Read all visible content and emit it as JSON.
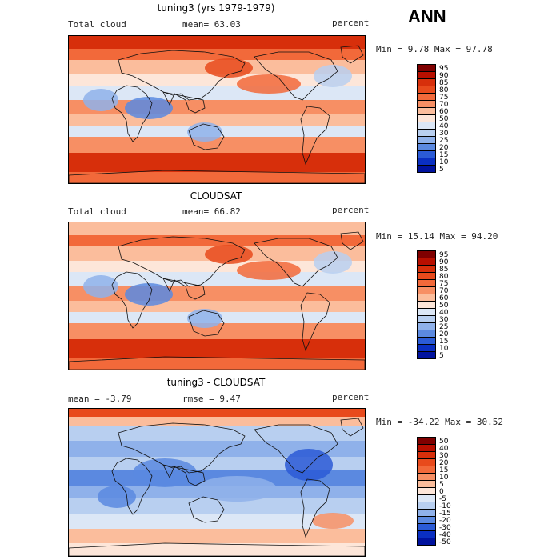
{
  "season": "ANN",
  "panels": [
    {
      "title": "tuning3 (yrs 1979-1979)",
      "left_label": "Total cloud",
      "mid_label": "mean=  63.03",
      "right_label": "percent",
      "minmax": "Min =   9.78 Max =  97.78",
      "palette": "abs",
      "colorbar": [
        "95",
        "90",
        "85",
        "80",
        "75",
        "70",
        "60",
        "50",
        "40",
        "30",
        "25",
        "20",
        "15",
        "10",
        "5"
      ]
    },
    {
      "title": "CLOUDSAT",
      "left_label": "Total cloud",
      "mid_label": "mean=  66.82",
      "right_label": "percent",
      "minmax": "Min =  15.14 Max =  94.20",
      "palette": "abs",
      "colorbar": [
        "95",
        "90",
        "85",
        "80",
        "75",
        "70",
        "60",
        "50",
        "40",
        "30",
        "25",
        "20",
        "15",
        "10",
        "5"
      ]
    },
    {
      "title": "tuning3 - CLOUDSAT",
      "left_label": "mean =  -3.79",
      "mid_label": "rmse =   9.47",
      "right_label": "percent",
      "minmax": "Min = -34.22 Max =  30.52",
      "palette": "diff",
      "colorbar": [
        "50",
        "40",
        "30",
        "20",
        "15",
        "10",
        "5",
        "0",
        "-5",
        "-10",
        "-15",
        "-20",
        "-30",
        "-40",
        "-50"
      ]
    }
  ],
  "colors": {
    "abs": [
      "#7f0000",
      "#b80f00",
      "#d72f0b",
      "#e84a1c",
      "#f2693a",
      "#f78f64",
      "#fbbd9c",
      "#fde6d9",
      "#dce7f6",
      "#b8cff0",
      "#8fb1ea",
      "#5b89e0",
      "#2b5bd6",
      "#0a2fc2",
      "#00129e"
    ],
    "diff": [
      "#7f0000",
      "#b80f00",
      "#d72f0b",
      "#e84a1c",
      "#f2693a",
      "#f78f64",
      "#fbbd9c",
      "#fde6d9",
      "#dce7f6",
      "#b8cff0",
      "#8fb1ea",
      "#5b89e0",
      "#2b5bd6",
      "#0a2fc2",
      "#00129e"
    ]
  }
}
